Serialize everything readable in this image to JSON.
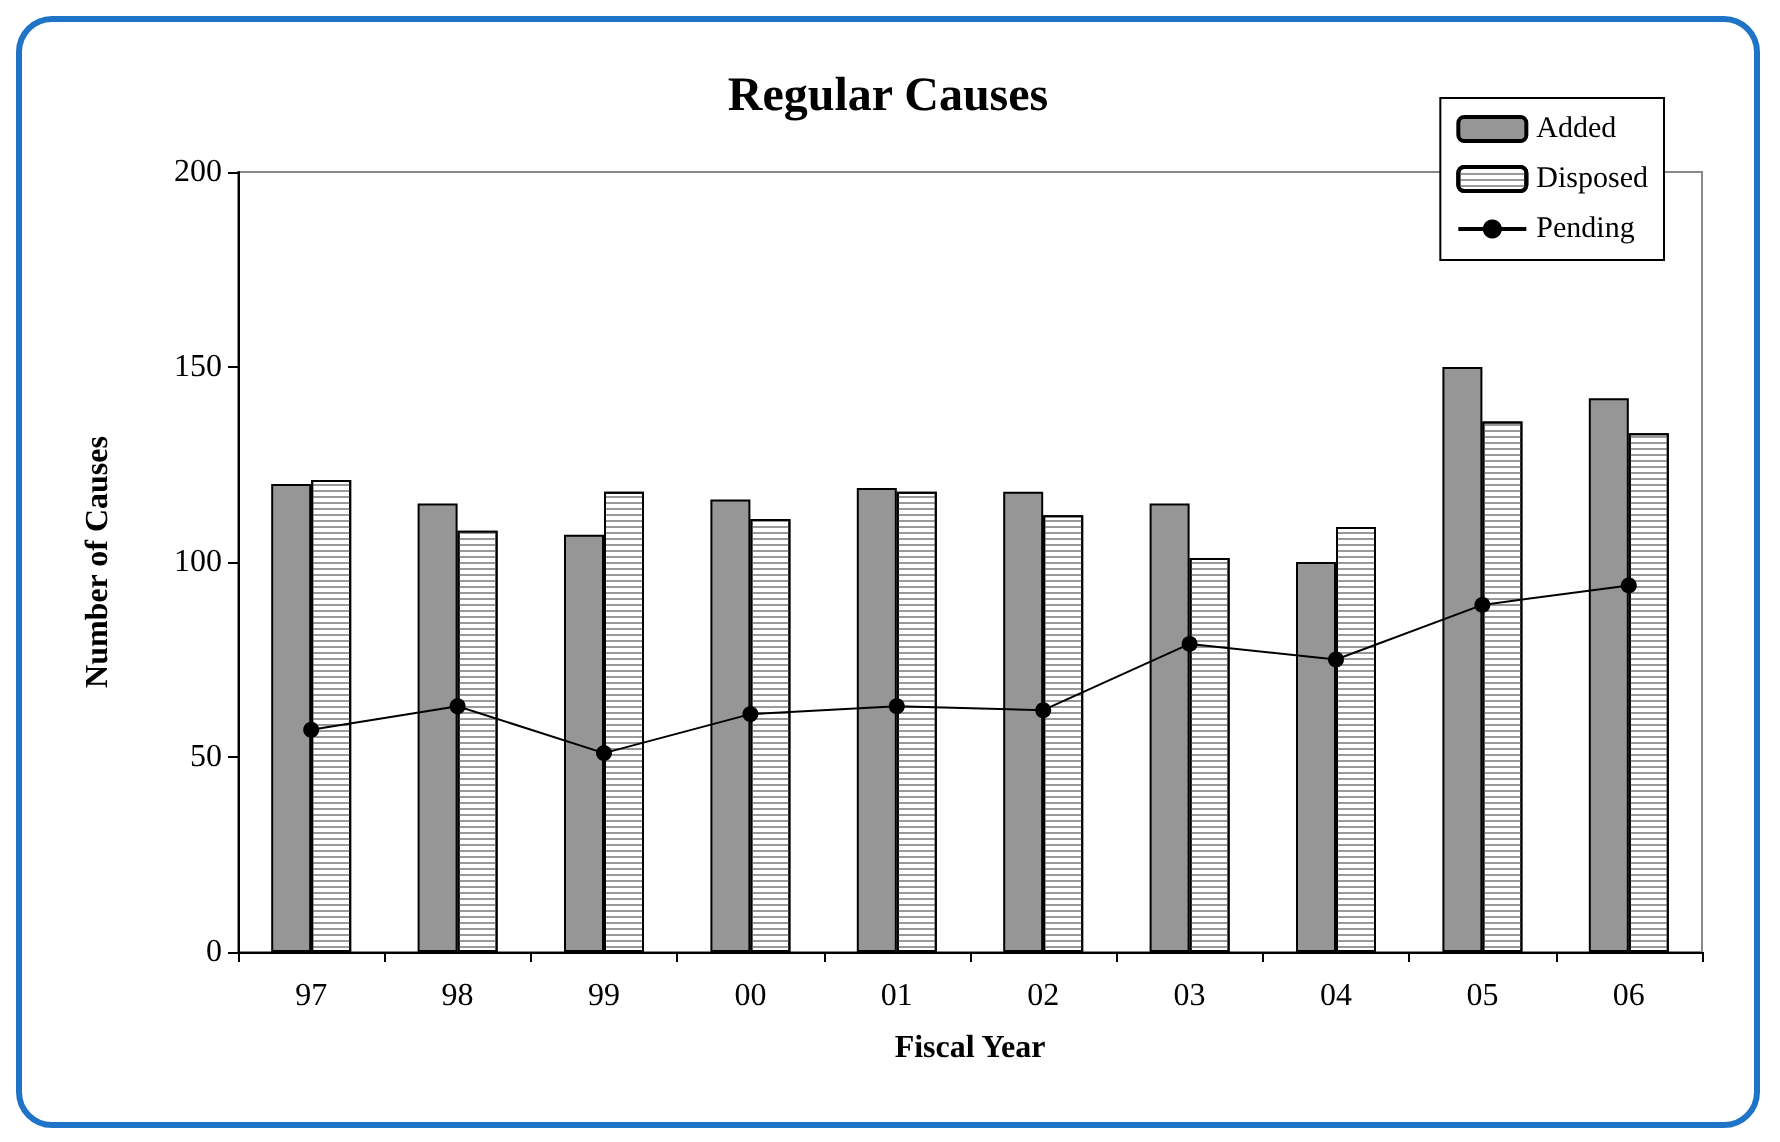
{
  "chart_data": {
    "type": "bar",
    "title": "Regular Causes",
    "xlabel": "Fiscal Year",
    "ylabel": "Number of Causes",
    "categories": [
      "97",
      "98",
      "99",
      "00",
      "01",
      "02",
      "03",
      "04",
      "05",
      "06"
    ],
    "series": [
      {
        "name": "Added",
        "color": "#969696",
        "values": [
          120,
          115,
          107,
          116,
          119,
          118,
          115,
          100,
          150,
          142
        ]
      },
      {
        "name": "Disposed",
        "color": "#ffffff",
        "values": [
          121,
          108,
          118,
          111,
          118,
          112,
          101,
          109,
          136,
          133
        ]
      },
      {
        "name": "Pending",
        "type": "line",
        "color": "#000000",
        "marker": "circle",
        "values": [
          57,
          63,
          51,
          61,
          63,
          62,
          79,
          75,
          89,
          94
        ]
      }
    ],
    "ylim": [
      0,
      200
    ],
    "yticks": [
      0,
      50,
      100,
      150,
      200
    ],
    "grid": false,
    "legend": "top right"
  }
}
